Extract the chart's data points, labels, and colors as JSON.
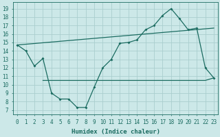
{
  "title": "",
  "xlabel": "Humidex (Indice chaleur)",
  "bg_color": "#cce8e8",
  "grid_color": "#aacece",
  "line_color": "#1a6b60",
  "xlim": [
    -0.5,
    23.5
  ],
  "ylim": [
    6.5,
    19.8
  ],
  "yticks": [
    7,
    8,
    9,
    10,
    11,
    12,
    13,
    14,
    15,
    16,
    17,
    18,
    19
  ],
  "xticks": [
    0,
    1,
    2,
    3,
    4,
    5,
    6,
    7,
    8,
    9,
    10,
    11,
    12,
    13,
    14,
    15,
    16,
    17,
    18,
    19,
    20,
    21,
    22,
    23
  ],
  "line1_x": [
    0,
    1,
    2,
    3,
    4,
    5,
    6,
    7,
    8,
    9,
    10,
    11,
    12,
    13,
    14,
    15,
    16,
    17,
    18,
    19,
    20,
    21,
    22,
    23
  ],
  "line1_y": [
    14.7,
    14.0,
    12.2,
    13.1,
    9.0,
    8.3,
    8.3,
    7.3,
    7.3,
    9.7,
    12.0,
    13.0,
    14.9,
    15.0,
    15.3,
    16.5,
    17.0,
    18.2,
    19.0,
    17.8,
    16.5,
    16.7,
    12.0,
    10.8
  ],
  "line2_x": [
    3,
    4,
    5,
    6,
    7,
    8,
    9,
    10,
    11,
    12,
    13,
    14,
    15,
    16,
    17,
    18,
    19,
    20,
    21,
    22,
    23
  ],
  "line2_y": [
    10.5,
    10.5,
    10.5,
    10.5,
    10.5,
    10.5,
    10.5,
    10.5,
    10.5,
    10.5,
    10.5,
    10.5,
    10.5,
    10.5,
    10.5,
    10.5,
    10.5,
    10.5,
    10.5,
    10.5,
    10.8
  ],
  "line3_x": [
    0,
    23
  ],
  "line3_y": [
    14.7,
    16.7
  ],
  "xlabel_fontsize": 6.5,
  "tick_fontsize": 5.5
}
